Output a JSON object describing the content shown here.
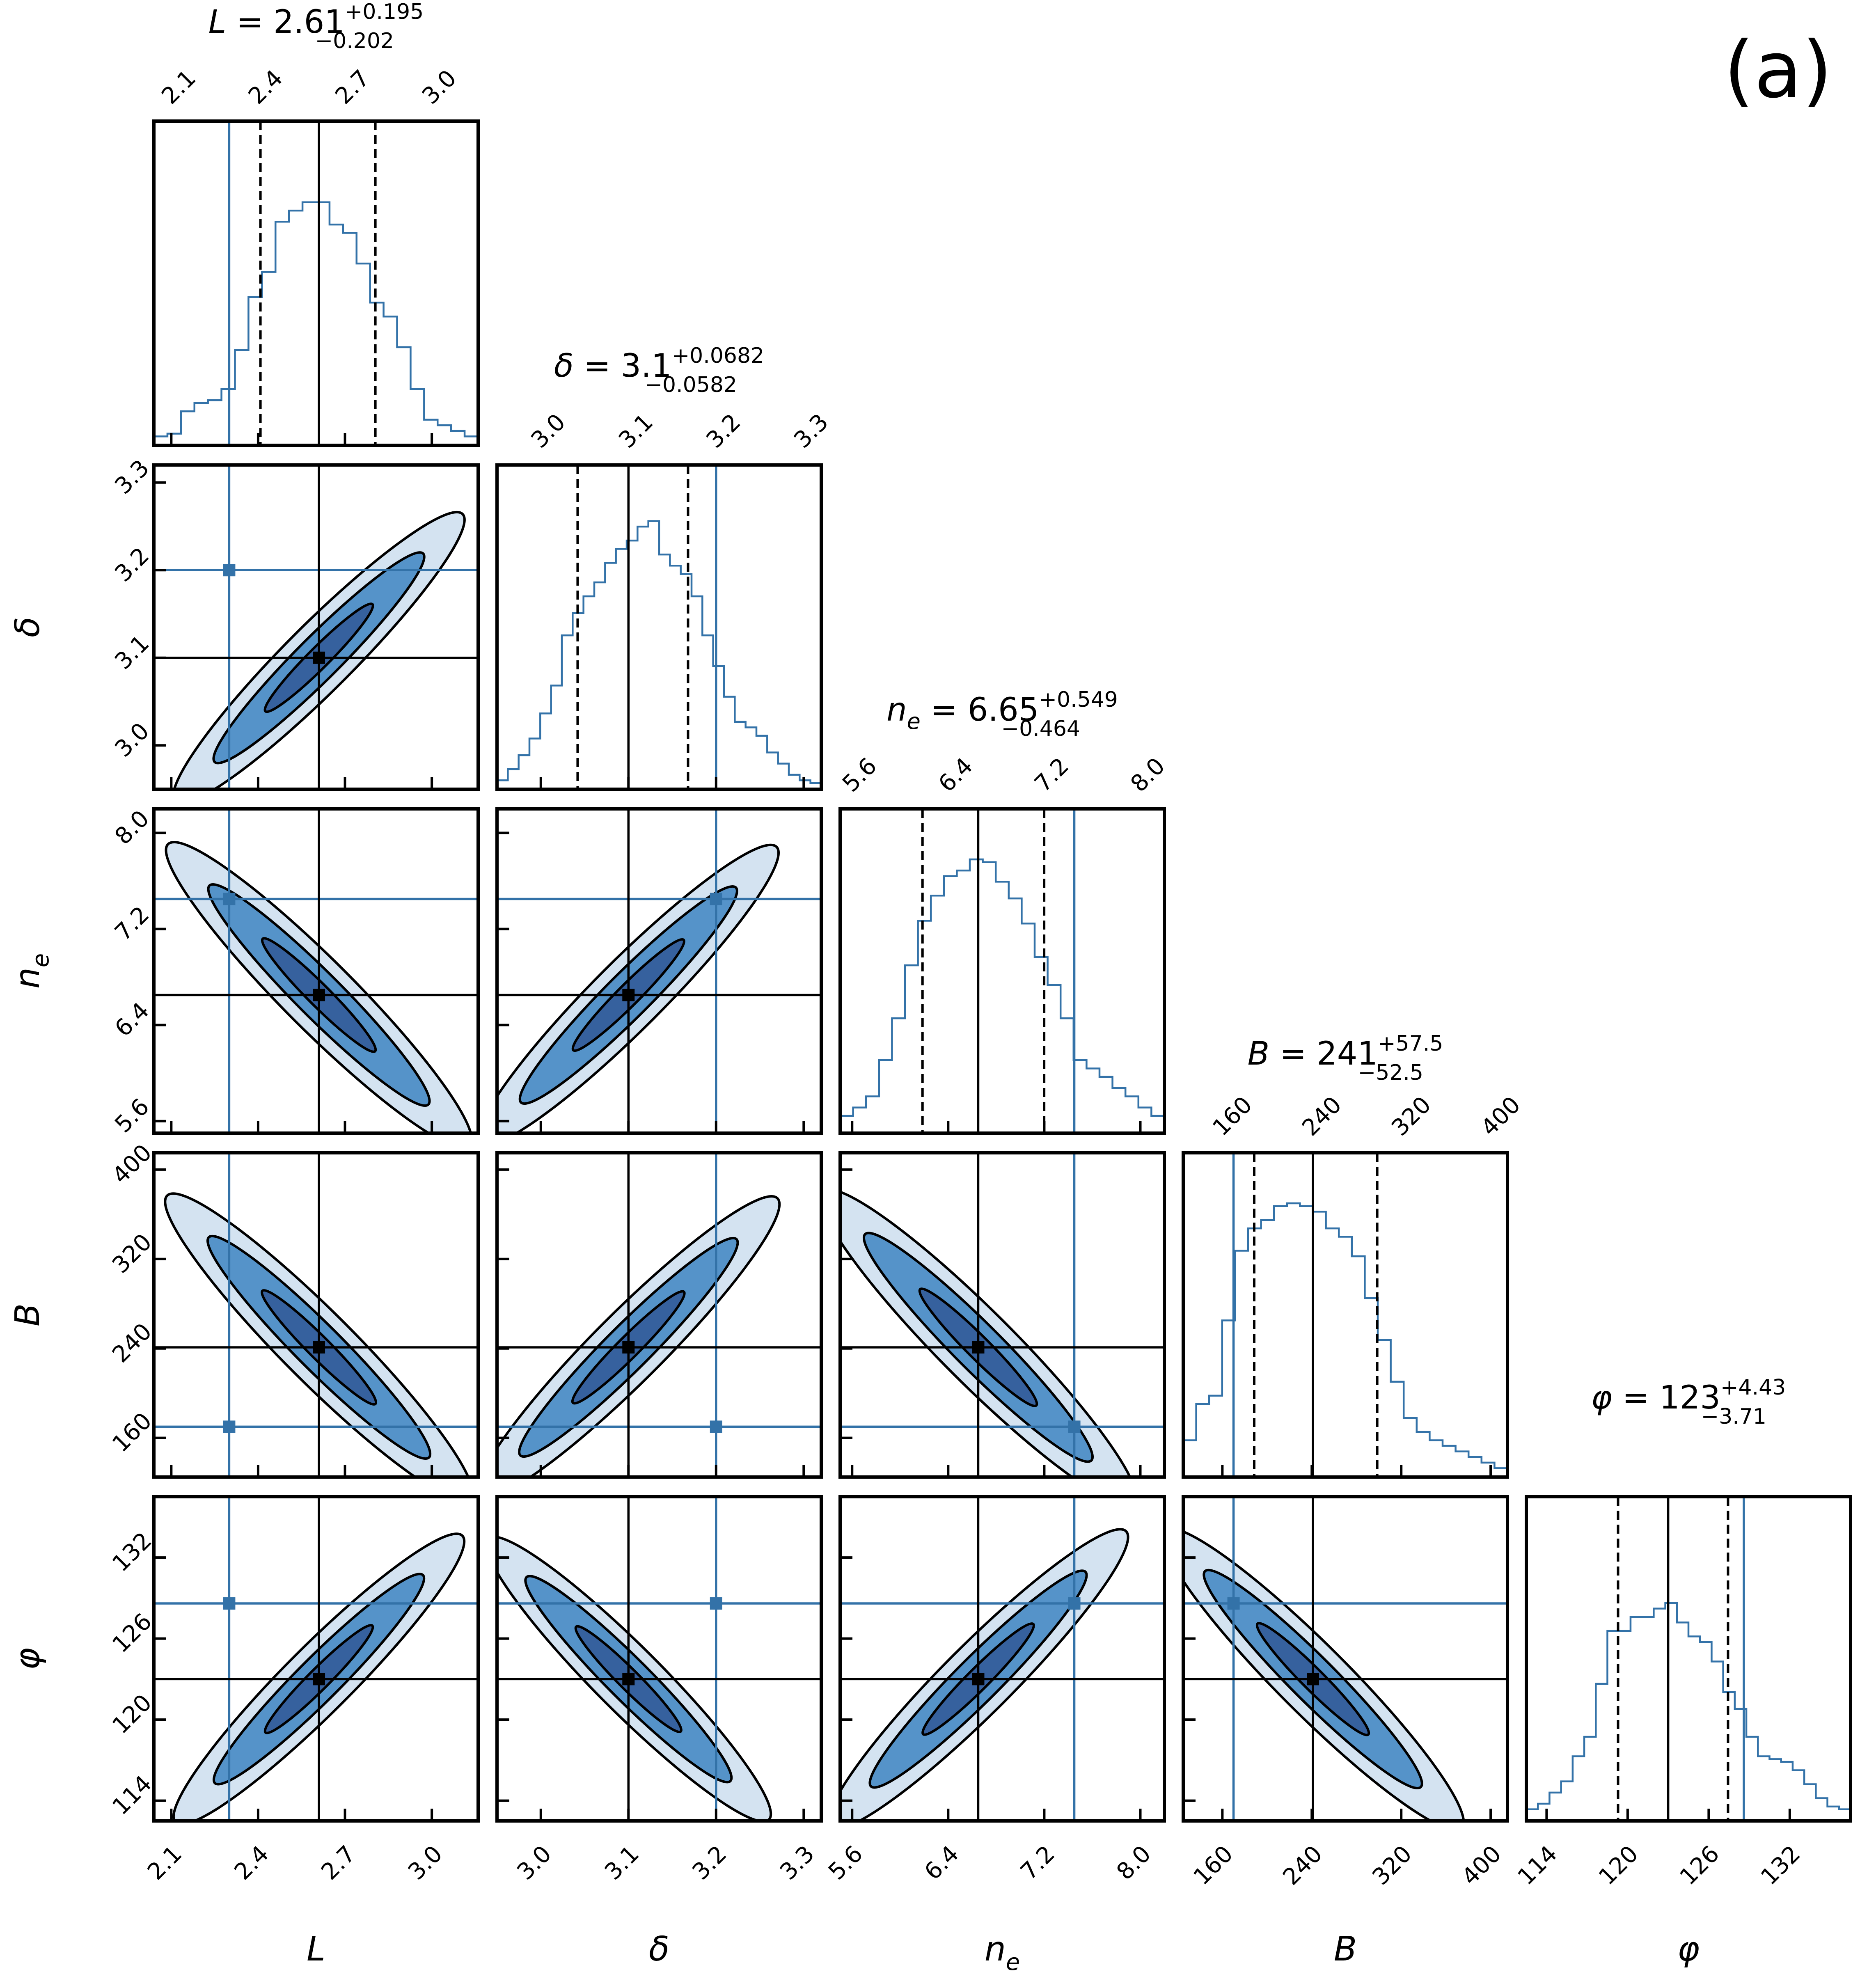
{
  "panel_label": "(a)",
  "colors": {
    "truth": "#3372a8",
    "fill_light": "#d4e3f1",
    "fill_mid": "#5593c9",
    "fill_dark": "#36619e",
    "line": "#000000"
  },
  "chart_data": {
    "type": "corner",
    "grid": false,
    "parameters": [
      {
        "key": "L",
        "label": "L",
        "sym": "L",
        "sub": "",
        "value": "2.61",
        "plus": "+0.195",
        "minus": "−0.202",
        "median": 2.61,
        "q_lo": 2.408,
        "q_hi": 2.805,
        "truth": 2.3,
        "range": [
          2.04,
          3.16
        ],
        "ticks": [
          "2.1",
          "2.4",
          "2.7",
          "3.0"
        ],
        "tick_values": [
          2.1,
          2.4,
          2.7,
          3.0
        ],
        "hist": [
          0.02,
          0.03,
          0.11,
          0.14,
          0.15,
          0.19,
          0.33,
          0.52,
          0.61,
          0.79,
          0.83,
          0.86,
          0.86,
          0.78,
          0.75,
          0.64,
          0.5,
          0.45,
          0.34,
          0.19,
          0.08,
          0.06,
          0.04,
          0.02
        ]
      },
      {
        "key": "delta",
        "label": "δ",
        "sym": "δ",
        "sub": "",
        "value": "3.1",
        "plus": "+0.0682",
        "minus": "−0.0582",
        "median": 3.1,
        "q_lo": 3.042,
        "q_hi": 3.168,
        "truth": 3.2,
        "range": [
          2.95,
          3.32
        ],
        "ticks": [
          "3.0",
          "3.1",
          "3.2",
          "3.3"
        ],
        "tick_values": [
          3.0,
          3.1,
          3.2,
          3.3
        ],
        "hist": [
          0.02,
          0.06,
          0.11,
          0.17,
          0.26,
          0.36,
          0.54,
          0.62,
          0.68,
          0.73,
          0.8,
          0.85,
          0.88,
          0.93,
          0.95,
          0.83,
          0.79,
          0.76,
          0.68,
          0.54,
          0.43,
          0.32,
          0.23,
          0.21,
          0.18,
          0.12,
          0.08,
          0.04,
          0.02,
          0.01
        ]
      },
      {
        "key": "n_e",
        "label": "n_e",
        "sym": "n",
        "sub": "e",
        "value": "6.65",
        "plus": "+0.549",
        "minus": "−0.464",
        "median": 6.65,
        "q_lo": 6.186,
        "q_hi": 7.199,
        "truth": 7.45,
        "range": [
          5.5,
          8.2
        ],
        "ticks": [
          "5.6",
          "6.4",
          "7.2",
          "8.0"
        ],
        "tick_values": [
          5.6,
          6.4,
          7.2,
          8.0
        ],
        "hist": [
          0.05,
          0.08,
          0.12,
          0.25,
          0.4,
          0.59,
          0.75,
          0.84,
          0.91,
          0.93,
          0.97,
          0.96,
          0.89,
          0.83,
          0.74,
          0.62,
          0.52,
          0.4,
          0.25,
          0.22,
          0.19,
          0.15,
          0.12,
          0.08,
          0.05
        ]
      },
      {
        "key": "B",
        "label": "B",
        "sym": "B",
        "sub": "",
        "value": "241",
        "plus": "+57.5",
        "minus": "−52.5",
        "median": 241,
        "q_lo": 188.5,
        "q_hi": 298.5,
        "truth": 170,
        "range": [
          125,
          415
        ],
        "ticks": [
          "160",
          "240",
          "320",
          "400"
        ],
        "tick_values": [
          160,
          240,
          320,
          400
        ],
        "hist": [
          0.12,
          0.25,
          0.28,
          0.55,
          0.8,
          0.88,
          0.91,
          0.96,
          0.97,
          0.96,
          0.94,
          0.88,
          0.85,
          0.78,
          0.63,
          0.48,
          0.33,
          0.2,
          0.15,
          0.12,
          0.1,
          0.08,
          0.06,
          0.04,
          0.02
        ]
      },
      {
        "key": "phi",
        "label": "φ",
        "sym": "φ",
        "sub": "",
        "value": "123",
        "plus": "+4.43",
        "minus": "−3.71",
        "median": 123,
        "q_lo": 119.29,
        "q_hi": 127.43,
        "truth": 128.6,
        "range": [
          112.5,
          136.5
        ],
        "ticks": [
          "114",
          "120",
          "126",
          "132"
        ],
        "tick_values": [
          114,
          120,
          126,
          132
        ],
        "hist": [
          0.03,
          0.05,
          0.09,
          0.13,
          0.22,
          0.29,
          0.48,
          0.67,
          0.67,
          0.72,
          0.72,
          0.75,
          0.77,
          0.7,
          0.65,
          0.63,
          0.56,
          0.45,
          0.39,
          0.29,
          0.22,
          0.21,
          0.2,
          0.17,
          0.12,
          0.07,
          0.04,
          0.03
        ]
      }
    ]
  }
}
